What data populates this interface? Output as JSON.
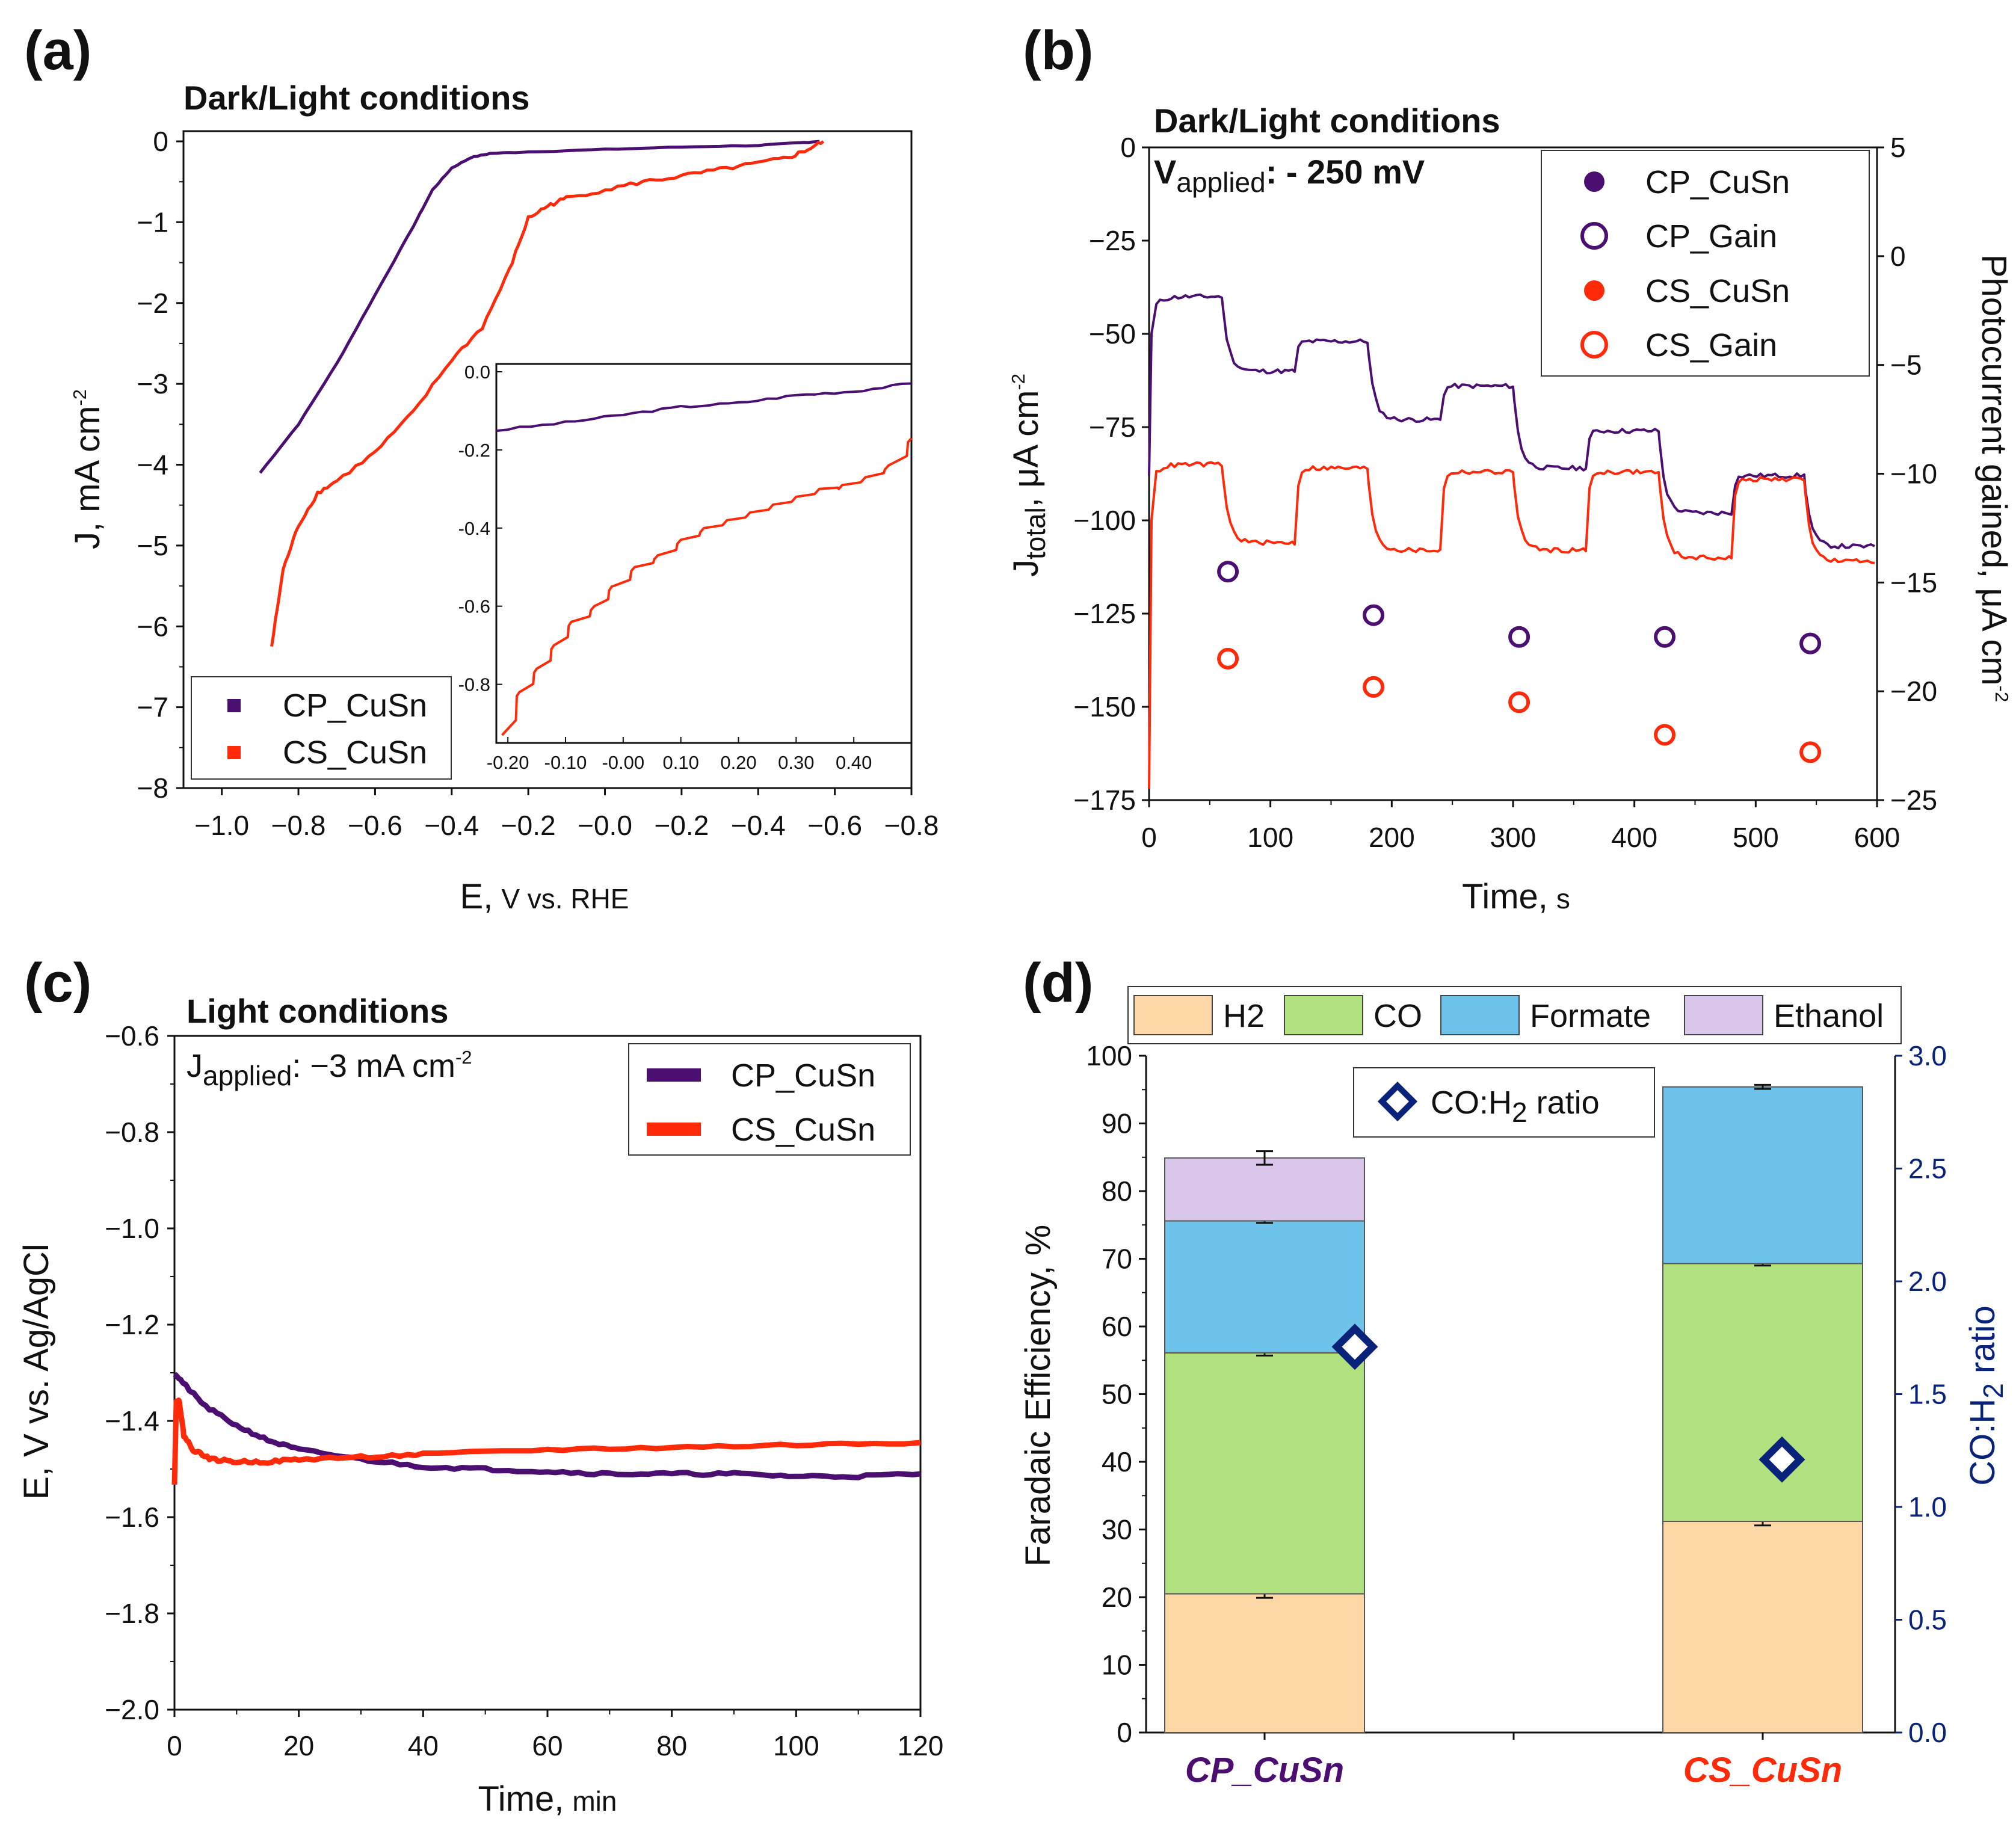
{
  "figure": {
    "colors": {
      "cp": "#4b0f72",
      "cs": "#ff2a0a",
      "h2": "#fdd8a6",
      "co": "#b1e07f",
      "formate": "#6ec3ea",
      "ethanol": "#dac6ea",
      "ratio_marker": "#0a237a",
      "axis": "#111111"
    }
  },
  "panel_a": {
    "letter": "(a)",
    "title": "Dark/Light conditions",
    "ylabel_main": "J, mA cm",
    "ylabel_sup": "-2",
    "xlabel_main": "E,",
    "xlabel_small": "V vs. RHE",
    "yticks": [
      "0",
      "−1",
      "−2",
      "−3",
      "−4",
      "−5",
      "−6",
      "−7",
      "−8"
    ],
    "xticks": [
      "−1.0",
      "−0.8",
      "−0.6",
      "−0.4",
      "−0.2",
      "−0.0",
      "−0.2",
      "−0.4",
      "−0.6",
      "−0.8"
    ],
    "inset_yticks": [
      "0.0",
      "-0.2",
      "-0.4",
      "-0.6",
      "-0.8"
    ],
    "inset_xticks": [
      "-0.20",
      "-0.10",
      "-0.00",
      "0.10",
      "0.20",
      "0.30",
      "0.40"
    ],
    "legend": [
      "CP_CuSn",
      "CS_CuSn"
    ]
  },
  "panel_b": {
    "letter": "(b)",
    "title": "Dark/Light conditions",
    "vapplied_main": "V",
    "vapplied_sub": "applied",
    "vapplied_value": ": - 250 mV",
    "ylabel_main": "J",
    "ylabel_sub": "total",
    "ylabel_rest": ", μA cm",
    "ylabel_sup": "-2",
    "y2label_main": "Photocurrent gained, μA cm",
    "y2label_sup": "-2",
    "xlabel_main": "Time,",
    "xlabel_small": "s",
    "yticks": [
      "0",
      "−25",
      "−50",
      "−75",
      "−100",
      "−125",
      "−150",
      "−175"
    ],
    "y2ticks": [
      "5",
      "0",
      "−5",
      "−10",
      "−15",
      "−20",
      "−25"
    ],
    "xticks": [
      "0",
      "100",
      "200",
      "300",
      "400",
      "500",
      "600"
    ],
    "legend": [
      "CP_CuSn",
      "CP_Gain",
      "CS_CuSn",
      "CS_Gain"
    ]
  },
  "panel_c": {
    "letter": "(c)",
    "title": "Light conditions",
    "japplied_main": "J",
    "japplied_sub": "applied",
    "japplied_value": ": −3 mA cm",
    "japplied_sup": "-2",
    "ylabel": "E, V vs. Ag/AgCl",
    "xlabel_main": "Time,",
    "xlabel_small": "min",
    "yticks": [
      "−0.6",
      "−0.8",
      "−1.0",
      "−1.2",
      "−1.4",
      "−1.6",
      "−1.8",
      "−2.0"
    ],
    "xticks": [
      "0",
      "20",
      "40",
      "60",
      "80",
      "100",
      "120"
    ],
    "legend": [
      "CP_CuSn",
      "CS_CuSn"
    ]
  },
  "panel_d": {
    "letter": "(d)",
    "legend": [
      "H2",
      "CO",
      "Formate",
      "Ethanol"
    ],
    "ratio_legend_main": "CO:H",
    "ratio_legend_sub": "2",
    "ratio_legend_rest": " ratio",
    "ylabel": "Faradaic Efficiency, %",
    "y2label_main": "CO:H",
    "y2label_sub": "2",
    "y2label_rest": " ratio",
    "yticks": [
      "0",
      "10",
      "20",
      "30",
      "40",
      "50",
      "60",
      "70",
      "80",
      "90",
      "100"
    ],
    "y2ticks": [
      "0.0",
      "0.5",
      "1.0",
      "1.5",
      "2.0",
      "2.5",
      "3.0"
    ],
    "categories": [
      "CP_CuSn",
      "CS_CuSn"
    ]
  },
  "chart_data": [
    {
      "panel": "a",
      "type": "line",
      "title": "Dark/Light conditions",
      "xlabel": "E, V vs. RHE",
      "ylabel": "J, mA cm-2",
      "xlim": [
        -1.1,
        0.8
      ],
      "ylim": [
        -8,
        0
      ],
      "series": [
        {
          "name": "CP_CuSn",
          "x": [
            -0.9,
            -0.8,
            -0.7,
            -0.6,
            -0.5,
            -0.45,
            -0.4,
            -0.35,
            -0.3,
            -0.2,
            0.0,
            0.2,
            0.4,
            0.5,
            0.56
          ],
          "y": [
            -4.1,
            -3.5,
            -2.75,
            -1.9,
            -1.05,
            -0.6,
            -0.33,
            -0.2,
            -0.15,
            -0.13,
            -0.1,
            -0.07,
            -0.05,
            -0.02,
            0.0
          ]
        },
        {
          "name": "CS_CuSn",
          "x": [
            -0.87,
            -0.84,
            -0.8,
            -0.75,
            -0.7,
            -0.6,
            -0.5,
            -0.4,
            -0.32,
            -0.25,
            -0.2,
            -0.15,
            -0.1,
            0.0,
            0.1,
            0.2,
            0.3,
            0.4,
            0.48,
            0.53,
            0.57
          ],
          "y": [
            -6.25,
            -5.3,
            -4.75,
            -4.35,
            -4.2,
            -3.85,
            -3.35,
            -2.7,
            -2.3,
            -1.6,
            -0.95,
            -0.8,
            -0.7,
            -0.6,
            -0.5,
            -0.43,
            -0.35,
            -0.27,
            -0.2,
            -0.1,
            0.0
          ]
        }
      ],
      "inset": {
        "xlim": [
          -0.22,
          0.5
        ],
        "ylim": [
          -0.95,
          0.02
        ],
        "series": [
          {
            "name": "CP_CuSn",
            "x": [
              -0.22,
              -0.1,
              0.0,
              0.1,
              0.2,
              0.3,
              0.4,
              0.5
            ],
            "y": [
              -0.15,
              -0.13,
              -0.11,
              -0.09,
              -0.08,
              -0.06,
              -0.05,
              -0.03
            ]
          },
          {
            "name": "CS_CuSn",
            "x": [
              -0.21,
              -0.18,
              -0.15,
              -0.12,
              -0.09,
              -0.05,
              -0.02,
              0.02,
              0.06,
              0.1,
              0.14,
              0.18,
              0.22,
              0.26,
              0.3,
              0.34,
              0.38,
              0.42,
              0.46,
              0.5
            ],
            "y": [
              -0.93,
              -0.82,
              -0.76,
              -0.7,
              -0.64,
              -0.6,
              -0.55,
              -0.5,
              -0.47,
              -0.43,
              -0.4,
              -0.38,
              -0.36,
              -0.34,
              -0.32,
              -0.3,
              -0.29,
              -0.27,
              -0.24,
              -0.17
            ]
          }
        ]
      }
    },
    {
      "panel": "b",
      "type": "line",
      "title": "Dark/Light conditions",
      "xlabel": "Time, s",
      "ylabel": "Jtotal, μA cm-2",
      "y2label": "Photocurrent gained, μA cm-2",
      "xlim": [
        0,
        600
      ],
      "ylim": [
        -175,
        0
      ],
      "y2lim": [
        -25,
        5
      ],
      "light_periods_s": [
        [
          0,
          60
        ],
        [
          120,
          180
        ],
        [
          240,
          300
        ],
        [
          360,
          420
        ],
        [
          480,
          540
        ]
      ],
      "series": [
        {
          "name": "CP_CuSn",
          "axis": "left",
          "levels_light": [
            -40,
            -52,
            -64,
            -76,
            -88
          ],
          "levels_dark": [
            -60,
            -73,
            -86,
            -98,
            -107
          ]
        },
        {
          "name": "CS_CuSn",
          "axis": "left",
          "levels_light": [
            -85,
            -86,
            -87,
            -87,
            -89
          ],
          "levels_dark": [
            -106,
            -108,
            -108,
            -110,
            -111
          ]
        },
        {
          "name": "CP_Gain",
          "axis": "right",
          "x": [
            65,
            185,
            305,
            425,
            545
          ],
          "y": [
            -14.5,
            -16.5,
            -17.5,
            -17.5,
            -17.8
          ]
        },
        {
          "name": "CS_Gain",
          "axis": "right",
          "x": [
            65,
            185,
            305,
            425,
            545
          ],
          "y": [
            -18.5,
            -19.8,
            -20.5,
            -22.0,
            -22.8
          ]
        }
      ]
    },
    {
      "panel": "c",
      "type": "line",
      "title": "Light conditions",
      "xlabel": "Time, min",
      "ylabel": "E, V vs. Ag/AgCl",
      "xlim": [
        0,
        120
      ],
      "ylim": [
        -2.0,
        -0.6
      ],
      "series": [
        {
          "name": "CP_CuSn",
          "x": [
            0,
            2,
            5,
            10,
            15,
            20,
            30,
            40,
            50,
            60,
            70,
            80,
            90,
            100,
            110,
            120
          ],
          "y": [
            -1.3,
            -1.33,
            -1.37,
            -1.41,
            -1.44,
            -1.46,
            -1.48,
            -1.495,
            -1.5,
            -1.505,
            -1.51,
            -1.51,
            -1.51,
            -1.515,
            -1.515,
            -1.51
          ]
        },
        {
          "name": "CS_CuSn",
          "x": [
            0,
            0.3,
            0.8,
            1.5,
            3,
            6,
            10,
            15,
            20,
            30,
            40,
            60,
            80,
            100,
            120
          ],
          "y": [
            -1.53,
            -1.36,
            -1.36,
            -1.43,
            -1.46,
            -1.48,
            -1.485,
            -1.485,
            -1.48,
            -1.475,
            -1.47,
            -1.46,
            -1.455,
            -1.45,
            -1.445
          ]
        }
      ]
    },
    {
      "panel": "d",
      "type": "bar",
      "stacked": true,
      "ylabel": "Faradaic Efficiency, %",
      "y2label": "CO:H2 ratio",
      "ylim": [
        0,
        100
      ],
      "y2lim": [
        0,
        3.0
      ],
      "categories": [
        "CP_CuSn",
        "CS_CuSn"
      ],
      "series": [
        {
          "name": "H2",
          "values": [
            20.5,
            31.2
          ],
          "errors": [
            0.6,
            0.6
          ]
        },
        {
          "name": "CO",
          "values": [
            35.6,
            38.1
          ],
          "errors": [
            0.4,
            0.3
          ]
        },
        {
          "name": "Formate",
          "values": [
            19.5,
            26.1
          ],
          "errors": [
            0.3,
            0.3
          ]
        },
        {
          "name": "Ethanol",
          "values": [
            9.3,
            0
          ],
          "errors": [
            1.0,
            0
          ]
        }
      ],
      "ratio": {
        "name": "CO:H2 ratio",
        "values": [
          1.71,
          1.21
        ]
      }
    }
  ]
}
